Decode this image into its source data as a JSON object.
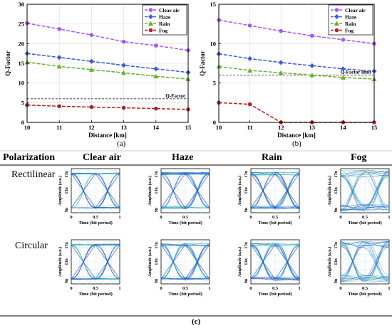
{
  "chart_data": [
    {
      "type": "line",
      "ylabel": "Q-Factor",
      "xlabel": "Distance [km]",
      "xlim": [
        10,
        15
      ],
      "ylim": [
        0,
        30
      ],
      "xticks": [
        "10",
        "11",
        "12",
        "13",
        "14",
        "15"
      ],
      "yticks": [
        "0",
        "5",
        "10",
        "15",
        "20",
        "25",
        "30"
      ],
      "x": [
        10,
        11,
        12,
        13,
        14,
        15
      ],
      "series": [
        {
          "name": "Clear air",
          "color": "#a855f7",
          "marker": "circle",
          "values": [
            25.2,
            23.7,
            22.2,
            20.5,
            19.5,
            18.3
          ]
        },
        {
          "name": "Haze",
          "color": "#3b5bdb",
          "marker": "diamond",
          "values": [
            17.5,
            16.5,
            15.5,
            14.5,
            13.6,
            12.7
          ]
        },
        {
          "name": "Rain",
          "color": "#66b032",
          "marker": "triangle",
          "values": [
            15.3,
            14.2,
            13.4,
            12.6,
            11.7,
            11.0
          ]
        },
        {
          "name": "Fog",
          "color": "#b22222",
          "marker": "circle",
          "values": [
            4.4,
            4.1,
            3.9,
            3.7,
            3.5,
            3.3
          ]
        }
      ],
      "reference_line": {
        "label": "Q-Factor",
        "value": 6
      },
      "legend_position": "top-right",
      "grid": true
    },
    {
      "type": "line",
      "ylabel": "Q-Factor",
      "xlabel": "Distance [km]",
      "xlim": [
        10,
        15
      ],
      "ylim": [
        0,
        15
      ],
      "xticks": [
        "10",
        "11",
        "12",
        "13",
        "14",
        "15"
      ],
      "yticks": [
        "0",
        "5",
        "10",
        "15"
      ],
      "x": [
        10,
        11,
        12,
        13,
        14,
        15
      ],
      "series": [
        {
          "name": "Clear air",
          "color": "#a855f7",
          "marker": "circle",
          "values": [
            13.0,
            12.3,
            11.6,
            11.0,
            10.5,
            10.0
          ]
        },
        {
          "name": "Haze",
          "color": "#3b5bdb",
          "marker": "diamond",
          "values": [
            8.7,
            8.1,
            7.6,
            7.2,
            6.8,
            6.5
          ]
        },
        {
          "name": "Rain",
          "color": "#66b032",
          "marker": "triangle",
          "values": [
            7.1,
            6.6,
            6.3,
            6.0,
            5.7,
            5.5
          ]
        },
        {
          "name": "Fog",
          "color": "#b22222",
          "marker": "circle",
          "values": [
            2.5,
            2.3,
            0.0,
            0.0,
            0.0,
            0.0
          ]
        }
      ],
      "reference_line": {
        "label": "Q-Factor limit",
        "value": 6
      },
      "legend_position": "top-right",
      "grid": true
    }
  ],
  "captions": {
    "a": "(a)",
    "b": "(b)",
    "c": "(c)"
  },
  "eye_grid": {
    "header_label": "Polarization",
    "columns": [
      "Clear air",
      "Haze",
      "Rain",
      "Fog"
    ],
    "rows": [
      "Rectilinear",
      "Circular"
    ],
    "ylabel": "Amplitude (a.u.)",
    "xlabel": "Time (bit period)",
    "yticks": [
      "9n",
      "13n",
      "17n"
    ],
    "xticks": [
      "0",
      "0.5",
      "1"
    ],
    "noise_level": [
      0.2,
      0.35,
      0.45,
      1.0
    ]
  }
}
